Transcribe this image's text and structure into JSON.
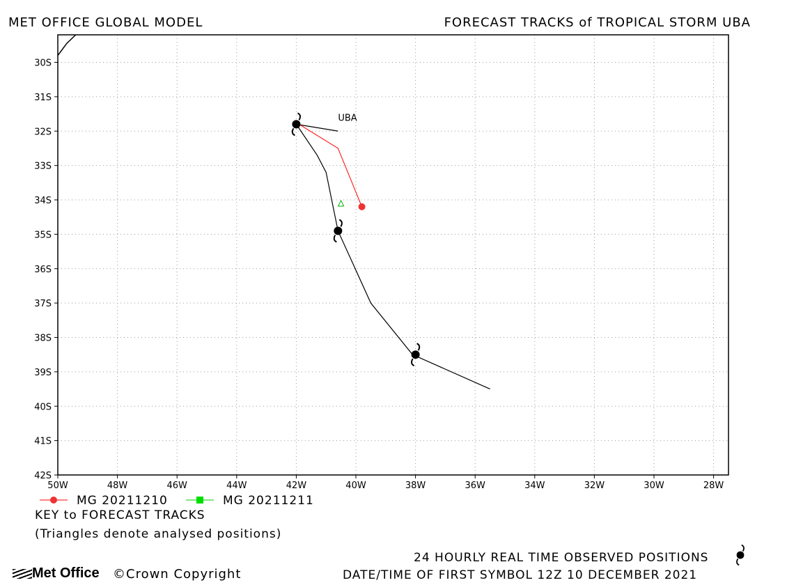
{
  "header": {
    "left_title": "MET OFFICE GLOBAL MODEL",
    "right_title": "FORECAST TRACKS of TROPICAL STORM UBA"
  },
  "chart_data": {
    "type": "scatter",
    "xlim": [
      -50,
      -27.5
    ],
    "ylim": [
      -42,
      -29.2
    ],
    "x_ticks": [
      "50W",
      "48W",
      "46W",
      "44W",
      "42W",
      "40W",
      "38W",
      "36W",
      "34W",
      "32W",
      "30W",
      "28W"
    ],
    "y_ticks": [
      "30S",
      "31S",
      "32S",
      "33S",
      "34S",
      "35S",
      "36S",
      "37S",
      "38S",
      "39S",
      "40S",
      "41S",
      "42S"
    ],
    "grid": true,
    "storm_label": {
      "text": "UBA",
      "lon": -40.6,
      "lat": -31.7
    },
    "observed_track": {
      "points": [
        [
          -42.0,
          -31.8
        ],
        [
          -41.3,
          -32.7
        ],
        [
          -41.0,
          -33.2
        ],
        [
          -40.6,
          -34.9
        ],
        [
          -39.5,
          -37.0
        ],
        [
          -38.1,
          -38.5
        ],
        [
          -35.5,
          -39.5
        ]
      ],
      "symbols": [
        [
          -42.0,
          -31.8
        ],
        [
          -40.6,
          -34.9
        ],
        [
          -38.0,
          -38.5
        ]
      ],
      "tail": [
        [
          -42.0,
          -31.8
        ],
        [
          -40.6,
          -32.0
        ]
      ]
    },
    "series": [
      {
        "name": "MG 20211210",
        "color": "#ff0000",
        "marker": "circle",
        "points": [
          [
            -42.0,
            -31.75
          ],
          [
            -40.6,
            -32.5
          ],
          [
            -39.8,
            -34.2
          ]
        ]
      },
      {
        "name": "MG 20211211",
        "color": "#00cc00",
        "marker": "square",
        "points": []
      }
    ],
    "analysed_positions": [
      {
        "lon": -40.5,
        "lat": -34.1,
        "color": "#00b000"
      }
    ],
    "border_feature": [
      [
        -50,
        -29.8
      ],
      [
        -49.7,
        -29.45
      ],
      [
        -49.4,
        -29.2
      ]
    ]
  },
  "legend": {
    "key_title": "KEY to FORECAST TRACKS",
    "triangles_note": "(Triangles denote analysed positions)"
  },
  "footer": {
    "observed_note": "24 HOURLY REAL TIME OBSERVED POSITIONS",
    "datetime_note": "DATE/TIME OF FIRST SYMBOL 12Z 10 DECEMBER 2021",
    "logo_text": "Met Office",
    "copyright": "Crown Copyright"
  }
}
